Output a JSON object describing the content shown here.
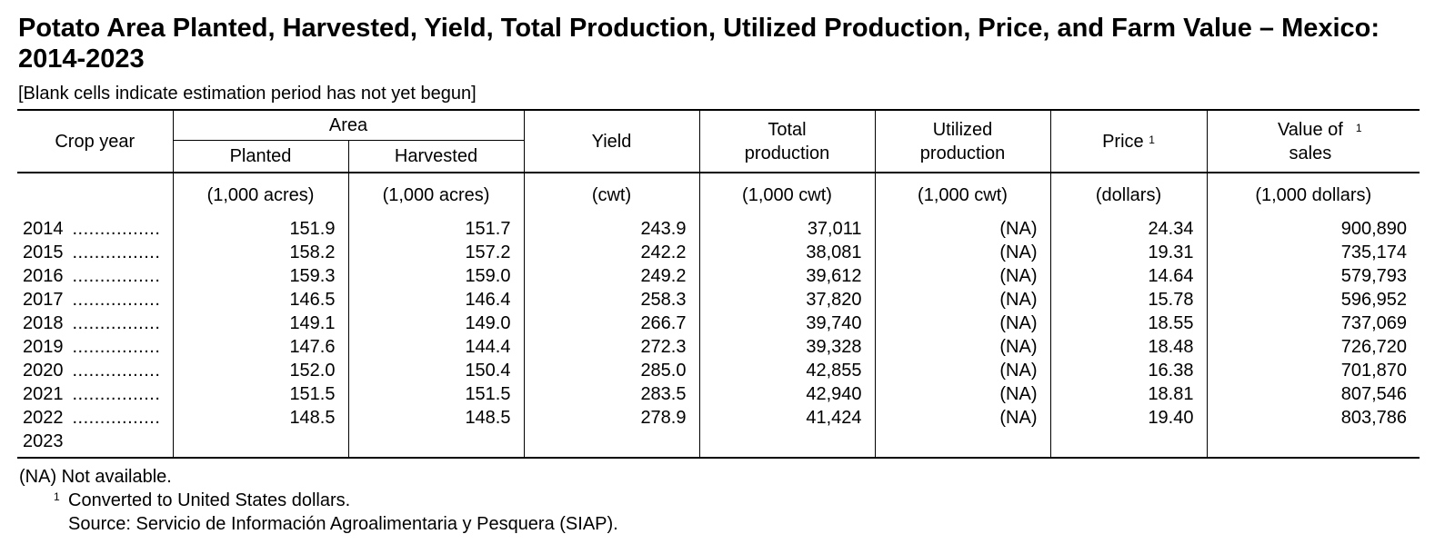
{
  "title": "Potato Area Planted, Harvested, Yield, Total Production, Utilized Production, Price, and Farm Value – Mexico: 2014-2023",
  "subtitle": "[Blank cells indicate estimation period has not yet begun]",
  "headers": {
    "crop_year": "Crop year",
    "area": "Area",
    "planted": "Planted",
    "harvested": "Harvested",
    "yield": "Yield",
    "total_production": "Total production",
    "utilized_production": "Utilized production",
    "price": "Price",
    "price_note": "1",
    "value_of_sales": "Value of sales",
    "value_note": "1"
  },
  "units": {
    "planted": "(1,000 acres)",
    "harvested": "(1,000 acres)",
    "yield": "(cwt)",
    "total_production": "(1,000 cwt)",
    "utilized_production": "(1,000 cwt)",
    "price": "(dollars)",
    "value_of_sales": "(1,000 dollars)"
  },
  "rows": [
    {
      "year": "2014",
      "dots": "................",
      "planted": "151.9",
      "harvested": "151.7",
      "yield": "243.9",
      "total": "37,011",
      "utilized": "(NA)",
      "price": "24.34",
      "value": "900,890"
    },
    {
      "year": "2015",
      "dots": "................",
      "planted": "158.2",
      "harvested": "157.2",
      "yield": "242.2",
      "total": "38,081",
      "utilized": "(NA)",
      "price": "19.31",
      "value": "735,174"
    },
    {
      "year": "2016",
      "dots": "................",
      "planted": "159.3",
      "harvested": "159.0",
      "yield": "249.2",
      "total": "39,612",
      "utilized": "(NA)",
      "price": "14.64",
      "value": "579,793"
    },
    {
      "year": "2017",
      "dots": "................",
      "planted": "146.5",
      "harvested": "146.4",
      "yield": "258.3",
      "total": "37,820",
      "utilized": "(NA)",
      "price": "15.78",
      "value": "596,952"
    },
    {
      "year": "2018",
      "dots": "................",
      "planted": "149.1",
      "harvested": "149.0",
      "yield": "266.7",
      "total": "39,740",
      "utilized": "(NA)",
      "price": "18.55",
      "value": "737,069"
    },
    {
      "year": "2019",
      "dots": "................",
      "planted": "147.6",
      "harvested": "144.4",
      "yield": "272.3",
      "total": "39,328",
      "utilized": "(NA)",
      "price": "18.48",
      "value": "726,720"
    },
    {
      "year": "2020",
      "dots": "................",
      "planted": "152.0",
      "harvested": "150.4",
      "yield": "285.0",
      "total": "42,855",
      "utilized": "(NA)",
      "price": "16.38",
      "value": "701,870"
    },
    {
      "year": "2021",
      "dots": "................",
      "planted": "151.5",
      "harvested": "151.5",
      "yield": "283.5",
      "total": "42,940",
      "utilized": "(NA)",
      "price": "18.81",
      "value": "807,546"
    },
    {
      "year": "2022",
      "dots": "................",
      "planted": "148.5",
      "harvested": "148.5",
      "yield": "278.9",
      "total": "41,424",
      "utilized": "(NA)",
      "price": "19.40",
      "value": "803,786"
    },
    {
      "year": "2023",
      "dots": "",
      "planted": "",
      "harvested": "",
      "yield": "",
      "total": "",
      "utilized": "",
      "price": "",
      "value": ""
    }
  ],
  "notes": {
    "na": "(NA) Not available.",
    "footnote_mark": "1",
    "footnote": "Converted to United States dollars.",
    "source": "Source:  Servicio de Información Agroalimentaria y Pesquera (SIAP)."
  }
}
